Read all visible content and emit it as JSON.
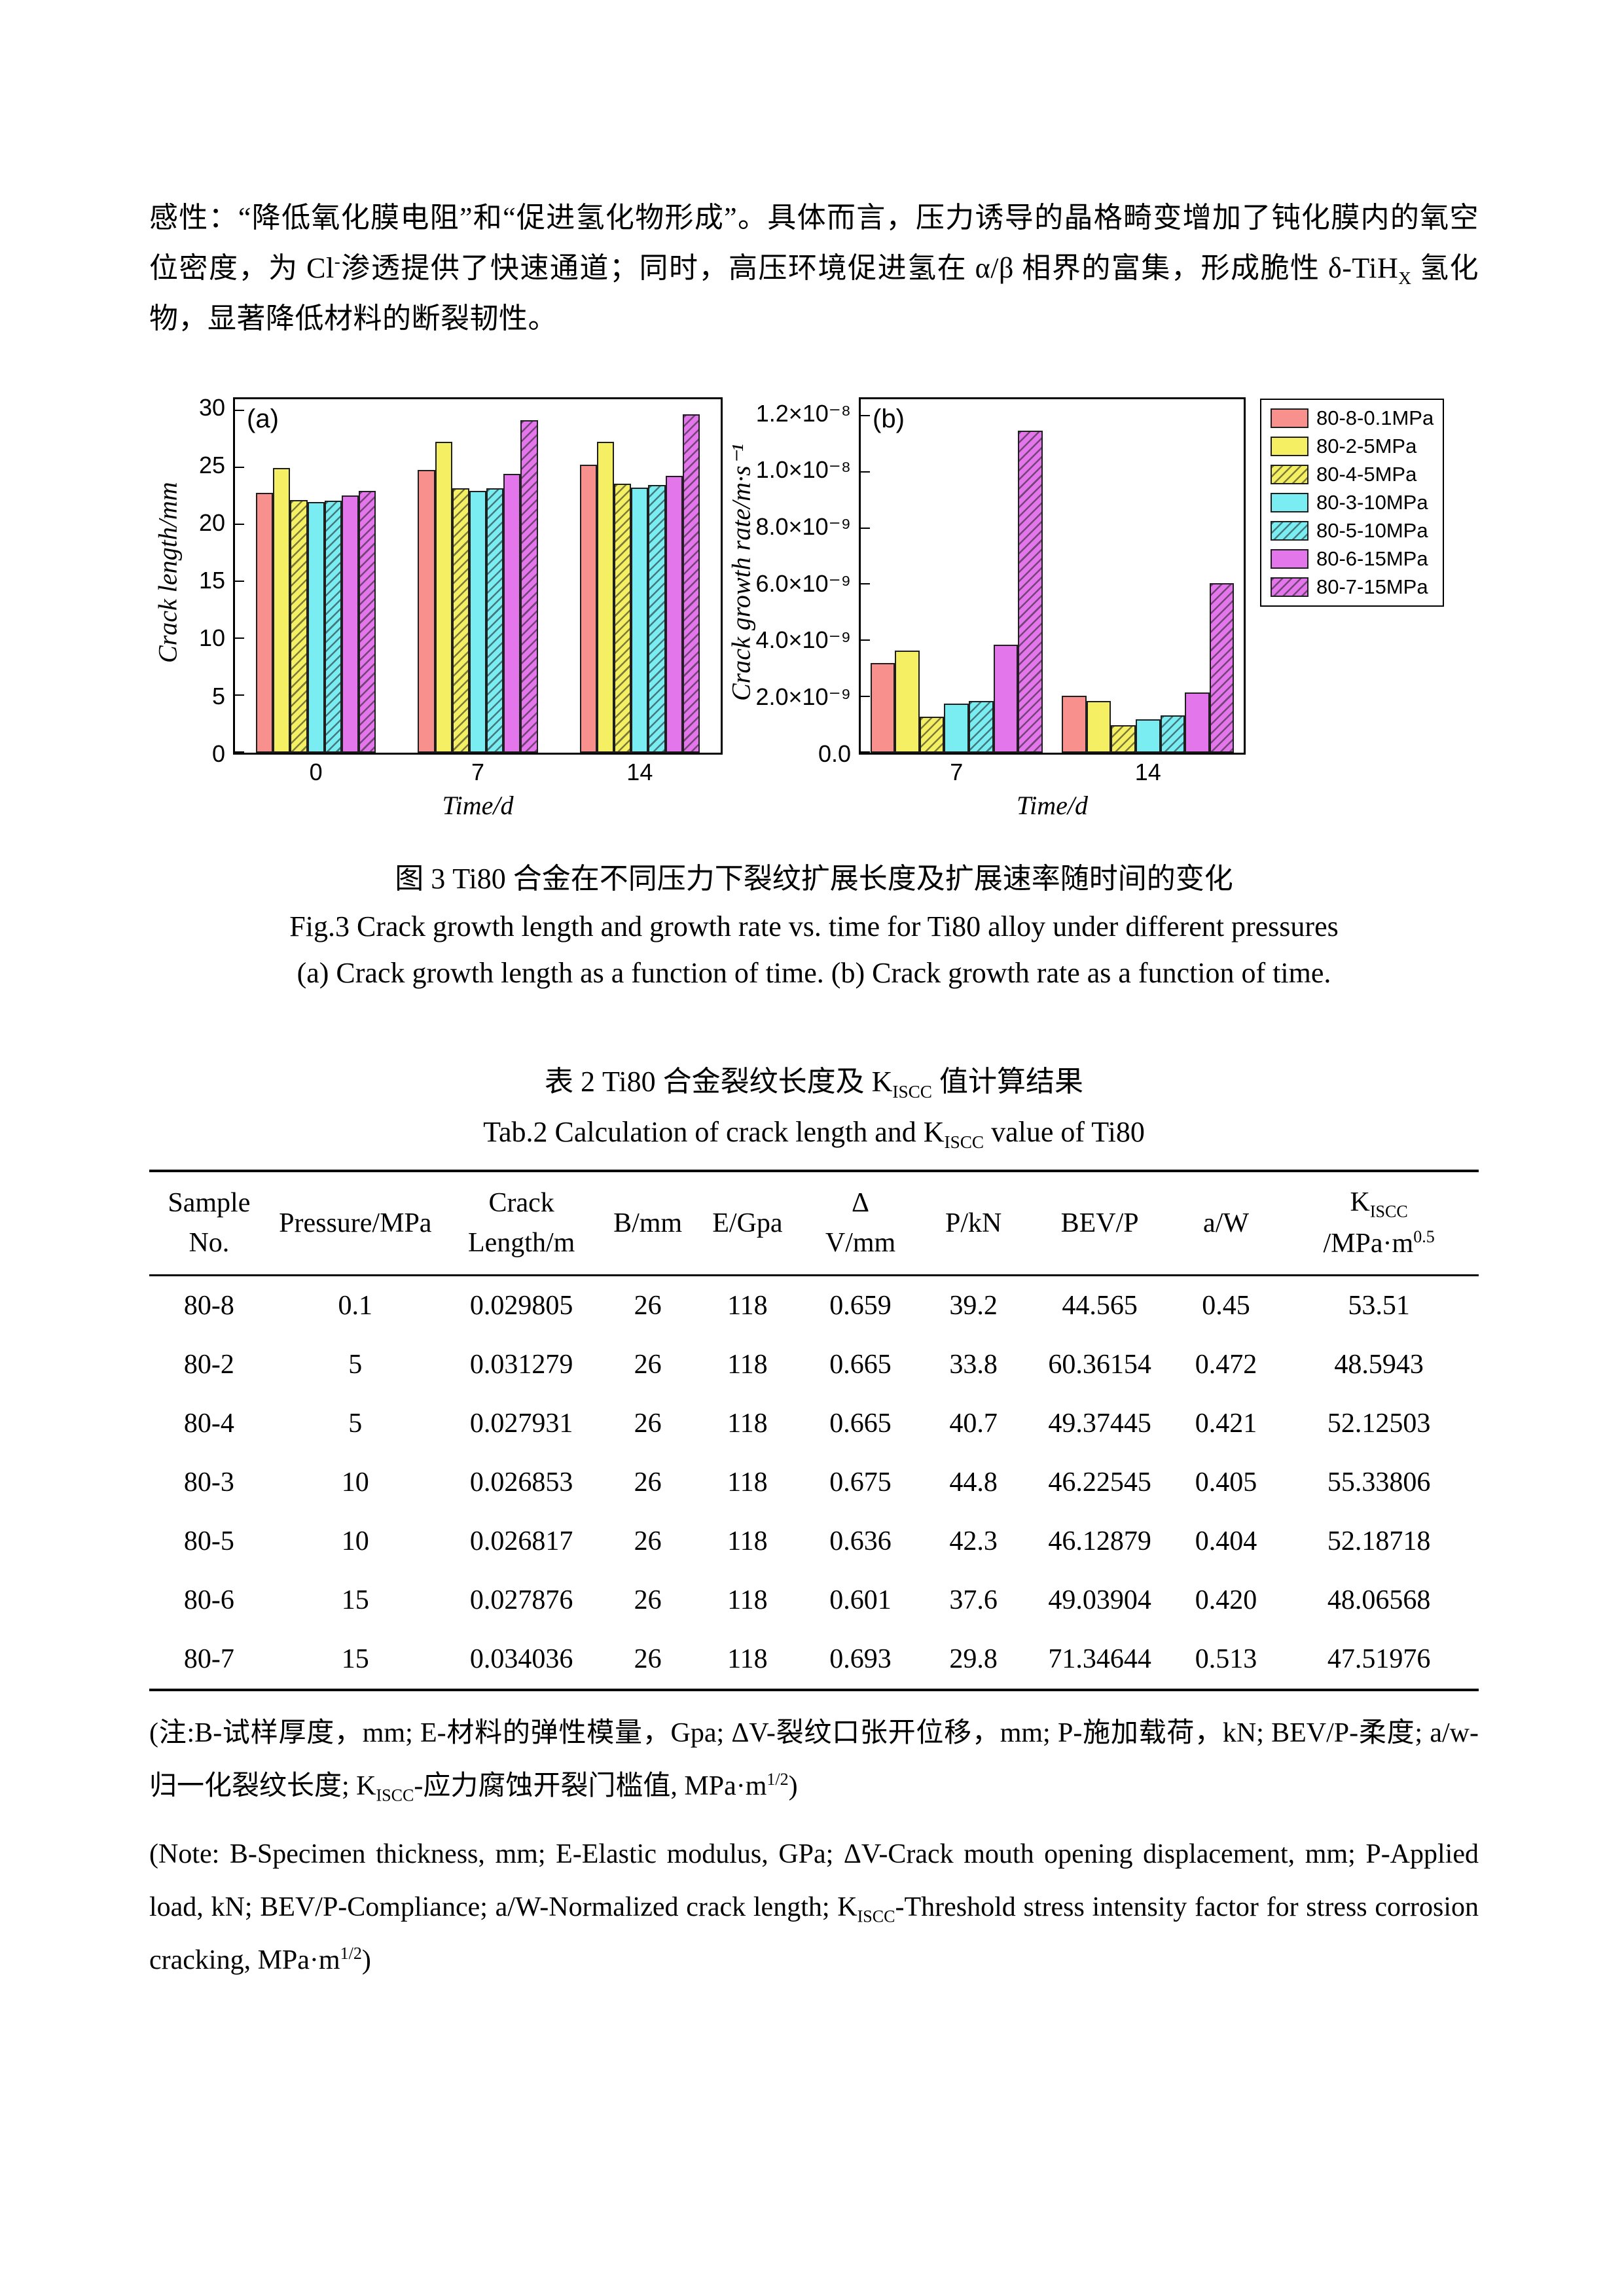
{
  "intro": {
    "text_html": "感性：“降低氧化膜电阻”和“促进氢化物形成”。具体而言，压力诱导的晶格畸变增加了钝化膜内的氧空位密度，为 Cl<sup>-</sup>渗透提供了快速通道；同时，高压环境促进氢在 α/β 相界的富集，形成脆性 δ-TiH<sub>X</sub> 氢化物，显著降低材料的断裂韧性。"
  },
  "chart_data": [
    {
      "type": "bar",
      "panel": "(a)",
      "xlabel": "Time/d",
      "ylabel": "Crack length/mm",
      "ylim": [
        0,
        31
      ],
      "grid": false,
      "ytick_values": [
        0,
        5,
        10,
        15,
        20,
        25,
        30
      ],
      "ytick_labels": [
        "0",
        "5",
        "10",
        "15",
        "20",
        "25",
        "30"
      ],
      "categories": [
        "0",
        "7",
        "14"
      ],
      "cluster_frac": 0.74,
      "series": [
        {
          "name": "80-8-0.1MPa",
          "values": [
            22.8,
            24.8,
            25.3
          ]
        },
        {
          "name": "80-2-5MPa",
          "values": [
            25.0,
            27.3,
            27.3
          ]
        },
        {
          "name": "80-4-5MPa",
          "values": [
            22.2,
            23.2,
            23.6
          ]
        },
        {
          "name": "80-3-10MPa",
          "values": [
            22.0,
            23.0,
            23.3
          ]
        },
        {
          "name": "80-5-10MPa",
          "values": [
            22.1,
            23.2,
            23.5
          ]
        },
        {
          "name": "80-6-15MPa",
          "values": [
            22.6,
            24.5,
            24.3
          ]
        },
        {
          "name": "80-7-15MPa",
          "values": [
            23.0,
            29.2,
            29.7
          ]
        }
      ]
    },
    {
      "type": "bar",
      "panel": "(b)",
      "xlabel": "Time/d",
      "ylabel": "Crack growth rate/m·s⁻¹",
      "ylim": [
        0,
        1.26e-08
      ],
      "grid": false,
      "ytick_values": [
        0,
        2e-09,
        4e-09,
        6e-09,
        8e-09,
        1e-08,
        1.2e-08
      ],
      "ytick_labels": [
        "0.0",
        "2.0×10⁻⁹",
        "4.0×10⁻⁹",
        "6.0×10⁻⁹",
        "8.0×10⁻⁹",
        "1.0×10⁻⁸",
        "1.2×10⁻⁸"
      ],
      "categories": [
        "7",
        "14"
      ],
      "cluster_frac": 0.9,
      "series": [
        {
          "name": "80-8-0.1MPa",
          "values": [
            3.2e-09,
            2.05e-09
          ]
        },
        {
          "name": "80-2-5MPa",
          "values": [
            3.65e-09,
            1.85e-09
          ]
        },
        {
          "name": "80-4-5MPa",
          "values": [
            1.3e-09,
            1e-09
          ]
        },
        {
          "name": "80-3-10MPa",
          "values": [
            1.75e-09,
            1.2e-09
          ]
        },
        {
          "name": "80-5-10MPa",
          "values": [
            1.85e-09,
            1.35e-09
          ]
        },
        {
          "name": "80-6-15MPa",
          "values": [
            3.85e-09,
            2.15e-09
          ]
        },
        {
          "name": "80-7-15MPa",
          "values": [
            1.15e-08,
            6.05e-09
          ]
        }
      ]
    }
  ],
  "legend": {
    "position": "right-outside",
    "entries": [
      {
        "label": "80-8-0.1MPa",
        "color": "#F8918D",
        "hatch": false
      },
      {
        "label": "80-2-5MPa",
        "color": "#F5F063",
        "hatch": false
      },
      {
        "label": "80-4-5MPa",
        "color": "#F5F063",
        "hatch": true
      },
      {
        "label": "80-3-10MPa",
        "color": "#79EDF2",
        "hatch": false
      },
      {
        "label": "80-5-10MPa",
        "color": "#79EDF2",
        "hatch": true
      },
      {
        "label": "80-6-15MPa",
        "color": "#E376EA",
        "hatch": false
      },
      {
        "label": "80-7-15MPa",
        "color": "#E376EA",
        "hatch": true
      }
    ]
  },
  "figure": {
    "caption_zh": "图 3 Ti80 合金在不同压力下裂纹扩展长度及扩展速率随时间的变化",
    "caption_en": "Fig.3 Crack growth length and growth rate vs. time for Ti80 alloy under different pressures",
    "caption_sub": "(a) Crack growth length as a function of time. (b) Crack growth rate as a function of time."
  },
  "table": {
    "caption_zh_html": "表 2 Ti80 合金裂纹长度及 K<sub>ISCC</sub> 值计算结果",
    "caption_en_html": "Tab.2 Calculation of crack length and K<sub>ISCC</sub> value of Ti80",
    "headers_html": [
      "Sample<br>No.",
      "Pressure/MPa",
      "Crack<br>Length/m",
      "B/mm",
      "E/Gpa",
      "Δ<br>V/mm",
      "P/kN",
      "BEV/P",
      "a/W",
      "K<sub>ISCC</sub><br>/MPa·m<sup>0.5</sup>"
    ],
    "rows": [
      [
        "80-8",
        "0.1",
        "0.029805",
        "26",
        "118",
        "0.659",
        "39.2",
        "44.565",
        "0.45",
        "53.51"
      ],
      [
        "80-2",
        "5",
        "0.031279",
        "26",
        "118",
        "0.665",
        "33.8",
        "60.36154",
        "0.472",
        "48.5943"
      ],
      [
        "80-4",
        "5",
        "0.027931",
        "26",
        "118",
        "0.665",
        "40.7",
        "49.37445",
        "0.421",
        "52.12503"
      ],
      [
        "80-3",
        "10",
        "0.026853",
        "26",
        "118",
        "0.675",
        "44.8",
        "46.22545",
        "0.405",
        "55.33806"
      ],
      [
        "80-5",
        "10",
        "0.026817",
        "26",
        "118",
        "0.636",
        "42.3",
        "46.12879",
        "0.404",
        "52.18718"
      ],
      [
        "80-6",
        "15",
        "0.027876",
        "26",
        "118",
        "0.601",
        "37.6",
        "49.03904",
        "0.420",
        "48.06568"
      ],
      [
        "80-7",
        "15",
        "0.034036",
        "26",
        "118",
        "0.693",
        "29.8",
        "71.34644",
        "0.513",
        "47.51976"
      ]
    ]
  },
  "notes": {
    "zh_html": "(注:B-试样厚度，mm; E-材料的弹性模量，Gpa; ΔV-裂纹口张开位移，mm; P-施加载荷，kN; BEV/P-柔度; a/w-归一化裂纹长度; K<sub>ISCC</sub>-应力腐蚀开裂门槛值, MPa·m<sup>1/2</sup>)",
    "en_html": "(Note: B-Specimen thickness, mm; E-Elastic modulus, GPa; ΔV-Crack mouth opening displacement, mm; P-Applied load, kN; BEV/P-Compliance; a/W-Normalized crack length; K<sub>ISCC</sub>-Threshold stress intensity factor for stress corrosion cracking, MPa·m<sup>1/2</sup>)"
  }
}
